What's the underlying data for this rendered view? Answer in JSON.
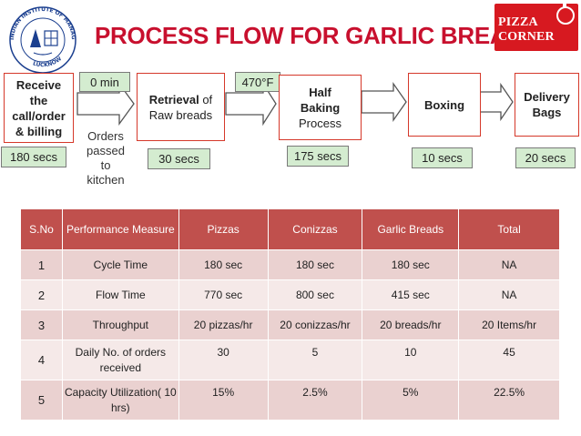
{
  "title": "PROCESS FLOW FOR GARLIC BREADS",
  "logos": {
    "left": {
      "name": "Indian Institute of Management Lucknow emblem",
      "text": "INDIAN INSTITUTE OF MANAGEMENT LUCKNOW"
    },
    "right": {
      "line1": "PIZZA",
      "line2": "CORNER"
    }
  },
  "flow": {
    "receive": {
      "lines": [
        "Receive",
        "the",
        "call/order",
        "& billing"
      ],
      "time": "180 secs"
    },
    "wait": {
      "label": "0 min"
    },
    "passed": {
      "lines": [
        "Orders",
        "passed",
        "to",
        "kitchen"
      ]
    },
    "retrieval": {
      "bold": "Retrieval",
      "rest": " of",
      "line2": "Raw breads",
      "time": "30 secs"
    },
    "temp": {
      "label": "470°F"
    },
    "baking": {
      "lines": [
        "Half",
        "Baking"
      ],
      "line3": "Process",
      "time": "175 secs"
    },
    "boxing": {
      "label": "Boxing",
      "time": "10 secs"
    },
    "delivery": {
      "lines": [
        "Delivery",
        "Bags"
      ],
      "time": "20 secs"
    }
  },
  "table": {
    "headers": [
      "S.No",
      "Performance Measure",
      "Pizzas",
      "Conizzas",
      "Garlic Breads",
      "Total"
    ],
    "rows": [
      [
        "1",
        "Cycle Time",
        "180 sec",
        "180 sec",
        "180 sec",
        "NA"
      ],
      [
        "2",
        "Flow Time",
        "770 sec",
        "800 sec",
        "415 sec",
        "NA"
      ],
      [
        "3",
        "Throughput",
        "20 pizzas/hr",
        "20 conizzas/hr",
        "20 breads/hr",
        "20 Items/hr"
      ],
      [
        "4",
        "Daily No. of orders received",
        "30",
        "5",
        "10",
        "45"
      ],
      [
        "5",
        "Capacity Utilization( 10 hrs)",
        "15%",
        "2.5%",
        "5%",
        "22.5%"
      ]
    ]
  },
  "colors": {
    "title": "#c8102e",
    "box_border": "#d5382a",
    "tag_fill": "#d4ecd0",
    "header_fill": "#c0504d",
    "row_odd": "#ead1d0",
    "row_even": "#f5e9e8"
  }
}
